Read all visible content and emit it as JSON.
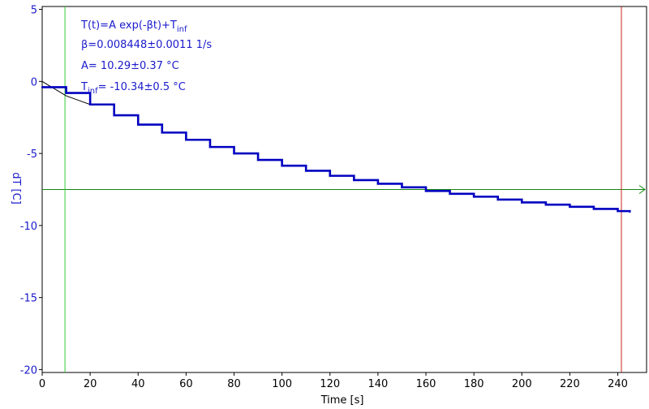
{
  "chart_data": {
    "type": "line",
    "title": "",
    "xlabel": "Time [s]",
    "ylabel": "dT [C]",
    "xlim": [
      0,
      252
    ],
    "ylim": [
      -20.2,
      5.2
    ],
    "x_ticks": [
      0,
      20,
      40,
      60,
      80,
      100,
      120,
      140,
      160,
      180,
      200,
      220,
      240
    ],
    "y_ticks": [
      5,
      0,
      -5,
      -10,
      -15,
      -20
    ],
    "grid": false,
    "colors": {
      "data": "#0000c0",
      "fit": "#000000",
      "green_cursor": "#33cc33",
      "red_cursor": "#cc2222",
      "threshold_line": "#118811",
      "ylabel": "#1a1acc",
      "annotation": "#1a1acc",
      "ticks_y": "#1a1acc"
    },
    "series": [
      {
        "values_description": "measured",
        "x": [
          0,
          10,
          20,
          30,
          40,
          50,
          60,
          70,
          80,
          90,
          100,
          110,
          120,
          130,
          140,
          150,
          160,
          170,
          180,
          190,
          200,
          210,
          220,
          230,
          240,
          245
        ],
        "y": [
          -0.4,
          -0.8,
          -1.6,
          -2.35,
          -3.0,
          -3.55,
          -4.05,
          -4.55,
          -5.0,
          -5.45,
          -5.85,
          -6.2,
          -6.55,
          -6.85,
          -7.1,
          -7.35,
          -7.6,
          -7.8,
          -8.0,
          -8.2,
          -8.4,
          -8.55,
          -8.7,
          -8.85,
          -9.0,
          -9.05
        ]
      }
    ],
    "fit": {
      "x": [
        0,
        3,
        6,
        10,
        15,
        20
      ],
      "y": [
        0,
        -0.3,
        -0.6,
        -1.0,
        -1.3,
        -1.6
      ]
    },
    "cursors": {
      "green_x": 9.5,
      "red_x": 241.5,
      "horizontal_y": -7.5
    },
    "annotations": {
      "line1": "T(t)=A exp(-βt)+T",
      "line1_sub": "inf",
      "line2": "β=0.008448±0.0011 1/s",
      "line3": "A= 10.29±0.37 °C",
      "line4_pre": "T",
      "line4_sub": "inf",
      "line4_post": "= -10.34±0.5 °C"
    }
  }
}
